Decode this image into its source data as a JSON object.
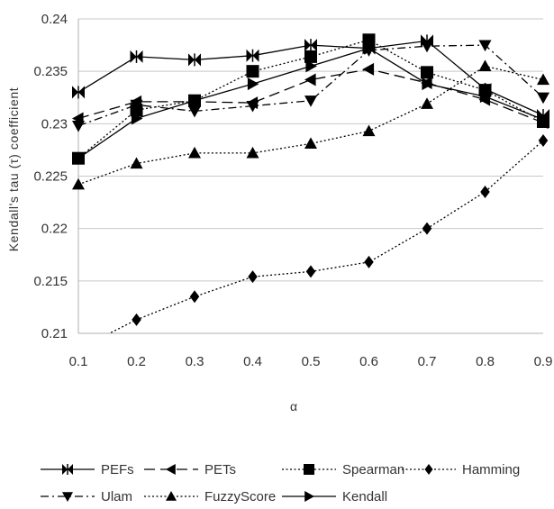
{
  "chart_data": {
    "type": "line",
    "title": "",
    "xlabel": "α",
    "ylabel": "Kendall's tau (τ) coefficient",
    "x": [
      0.1,
      0.2,
      0.3,
      0.4,
      0.5,
      0.6,
      0.7,
      0.8,
      0.9
    ],
    "x_tick_labels": [
      "0.1",
      "0.2",
      "0.3",
      "0.4",
      "0.5",
      "0.6",
      "0.7",
      "0.8",
      "0.9"
    ],
    "y_tick_labels": [
      "0.21",
      "0.215",
      "0.22",
      "0.225",
      "0.23",
      "0.235",
      "0.24"
    ],
    "ylim": [
      0.21,
      0.24
    ],
    "grid": "horizontal",
    "legend_position": "bottom",
    "series": [
      {
        "name": "PEFs",
        "marker": "bowtie",
        "dash": "solid",
        "values": [
          0.233,
          0.2364,
          0.2361,
          0.2365,
          0.2375,
          0.2372,
          0.2379,
          0.2333,
          0.2308
        ]
      },
      {
        "name": "PETs",
        "marker": "triangle-left",
        "dash": "long-dash",
        "values": [
          0.2305,
          0.2321,
          0.2321,
          0.232,
          0.2342,
          0.2352,
          0.2339,
          0.2323,
          0.2301
        ]
      },
      {
        "name": "Spearman",
        "marker": "square",
        "dash": "dotted",
        "values": [
          0.2267,
          0.2313,
          0.2322,
          0.235,
          0.2364,
          0.238,
          0.2349,
          0.2332,
          0.2302
        ]
      },
      {
        "name": "Hamming",
        "marker": "diamond",
        "dash": "dotted",
        "values": [
          0.2085,
          0.2113,
          0.2135,
          0.2154,
          0.2159,
          0.2168,
          0.22,
          0.2235,
          0.2284
        ]
      },
      {
        "name": "Ulam",
        "marker": "triangle-down",
        "dash": "dash-dot",
        "values": [
          0.2298,
          0.2318,
          0.2312,
          0.2317,
          0.2322,
          0.237,
          0.2374,
          0.2375,
          0.2325
        ]
      },
      {
        "name": "FuzzyScore",
        "marker": "triangle-up",
        "dash": "dotted",
        "values": [
          0.2242,
          0.2262,
          0.2272,
          0.2272,
          0.2281,
          0.2293,
          0.2319,
          0.2355,
          0.2342
        ]
      },
      {
        "name": "Kendall",
        "marker": "triangle-right",
        "dash": "solid",
        "values": [
          0.2267,
          0.2305,
          0.2322,
          0.2338,
          0.2355,
          0.2372,
          0.2338,
          0.2326,
          0.2304
        ]
      }
    ]
  }
}
